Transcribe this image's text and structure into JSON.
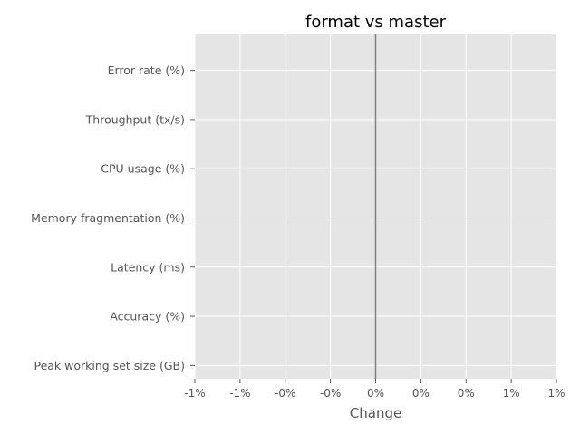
{
  "chart_data": {
    "type": "bar",
    "title": "format vs master",
    "xlabel": "Change",
    "ylabel": "",
    "categories": [
      "Error rate (%)",
      "Throughput (tx/s)",
      "CPU usage (%)",
      "Memory fragmentation (%)",
      "Latency (ms)",
      "Accuracy (%)",
      "Peak working set size (GB)"
    ],
    "values": [
      0,
      0,
      0,
      0,
      0,
      0,
      0
    ],
    "orientation": "horizontal",
    "xlim": [
      -1,
      1
    ],
    "x_ticks": [
      -1,
      -0.75,
      -0.5,
      -0.25,
      0,
      0.25,
      0.5,
      0.75,
      1
    ],
    "x_tick_labels": [
      "-1%",
      "-1%",
      "-0%",
      "-0%",
      "0%",
      "0%",
      "0%",
      "1%",
      "1%"
    ],
    "reference_line": 0,
    "grid": true,
    "colors": {
      "plot_background": "#e5e5e5",
      "grid": "#ffffff",
      "reference_line": "#808080",
      "tick_text": "#555555",
      "title_text": "#000000"
    }
  }
}
